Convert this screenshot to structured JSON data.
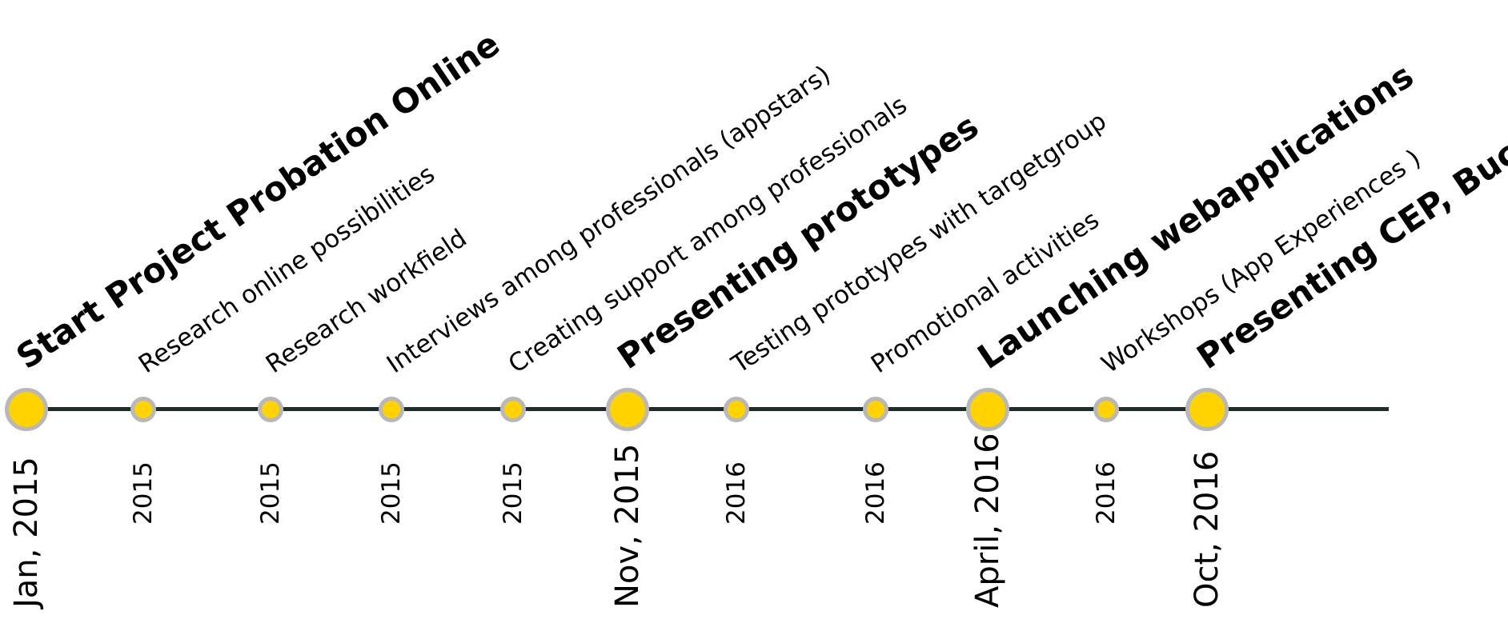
{
  "milestones": [
    {
      "label": "Start  Project Probation Online",
      "date": "Jan, 2015",
      "major": true
    },
    {
      "label": "Research online possibilities",
      "date": "2015",
      "major": false
    },
    {
      "label": "Research workfield",
      "date": "2015",
      "major": false
    },
    {
      "label": "Interviews among professionals  (appstars)",
      "date": "2015",
      "major": false
    },
    {
      "label": "Creating support among professionals",
      "date": "2015",
      "major": false
    },
    {
      "label": "Presenting prototypes",
      "date": "Nov, 2015",
      "major": true
    },
    {
      "label": "Testing prototypes with targetgroup",
      "date": "2016",
      "major": false
    },
    {
      "label": "Promotional activities",
      "date": "2016",
      "major": false
    },
    {
      "label": "Launching webapplications",
      "date": "April, 2016",
      "major": true
    },
    {
      "label": "Workshops (App Experiences )",
      "date": "2016",
      "major": false
    },
    {
      "label": "Presenting CEP, Bucharest",
      "date": "Oct, 2016",
      "major": true
    }
  ],
  "colors": {
    "line": "#1f2e2c",
    "dot_fill": "#ffd200",
    "dot_ring": "#b8b8b8"
  }
}
